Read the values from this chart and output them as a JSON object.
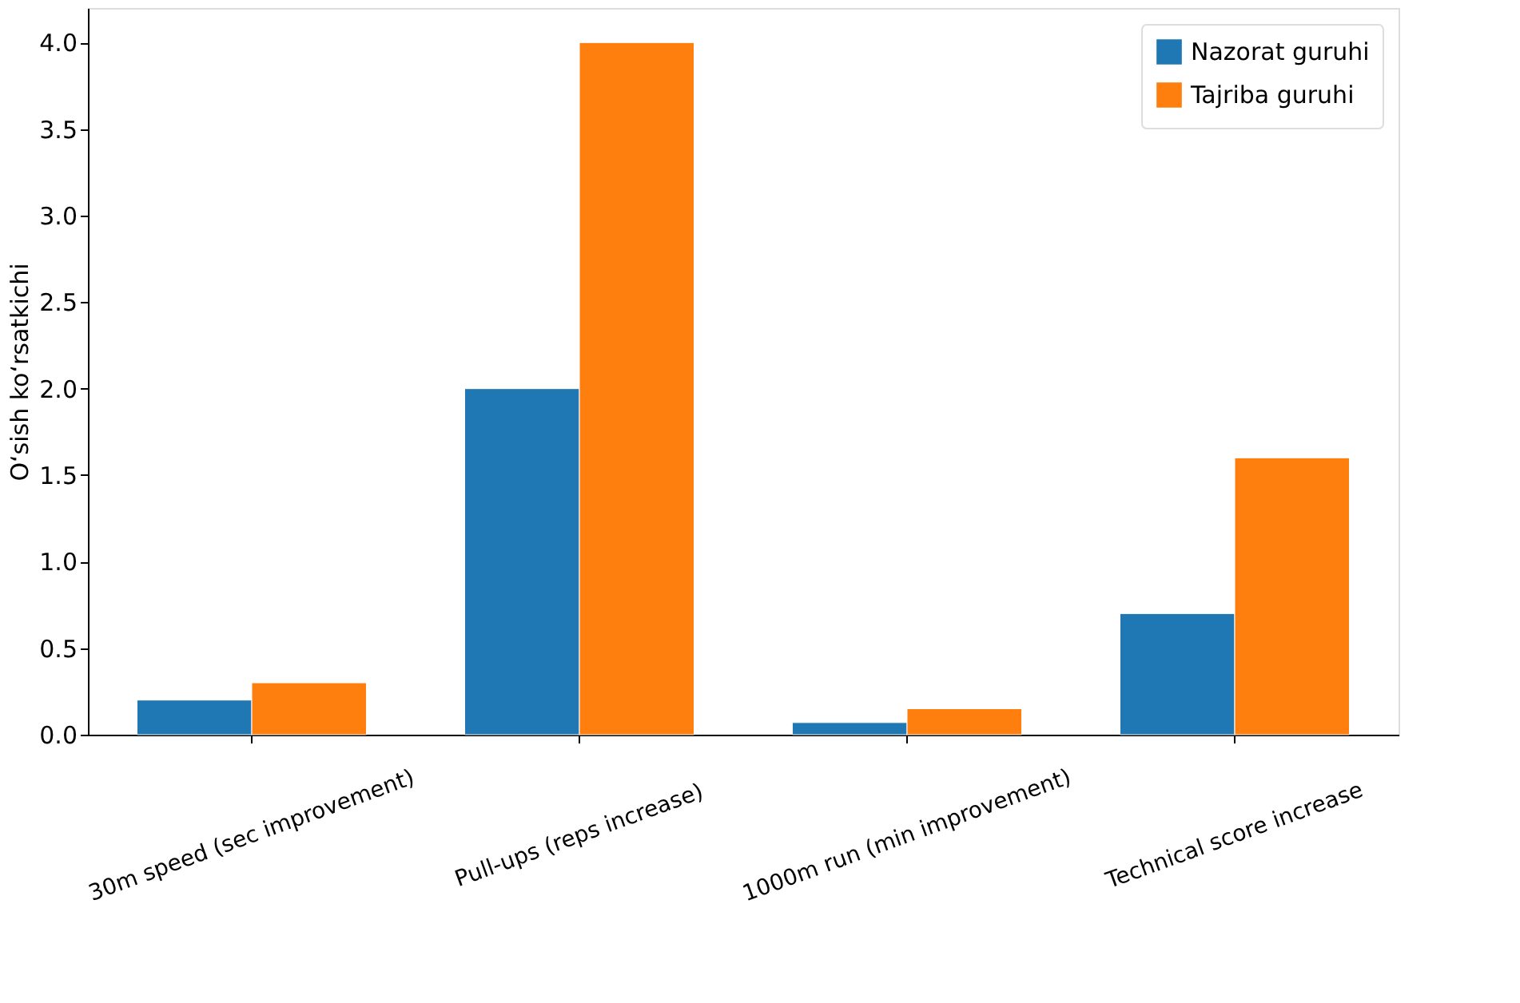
{
  "chart_data": {
    "type": "bar",
    "ylabel": "O‘sish ko‘rsatkichi",
    "categories": [
      "30m speed (sec improvement)",
      "Pull-ups (reps increase)",
      "1000m run (min improvement)",
      "Technical score increase"
    ],
    "series": [
      {
        "name": "Nazorat guruhi",
        "color": "#1f77b4",
        "values": [
          0.2,
          2.0,
          0.07,
          0.7
        ]
      },
      {
        "name": "Tajriba guruhi",
        "color": "#ff7f0e",
        "values": [
          0.3,
          4.0,
          0.15,
          1.6
        ]
      }
    ],
    "ylim": [
      0,
      4.2
    ],
    "yticks": [
      {
        "value": 0,
        "label": "0.0"
      },
      0.5,
      {
        "value": 1,
        "label": "1.0"
      },
      1.5,
      {
        "value": 2,
        "label": "2.0"
      },
      2.5,
      {
        "value": 3,
        "label": "3.0"
      },
      3.5,
      {
        "value": 4,
        "label": "4.0"
      }
    ],
    "legend": "top right",
    "grid": false
  }
}
